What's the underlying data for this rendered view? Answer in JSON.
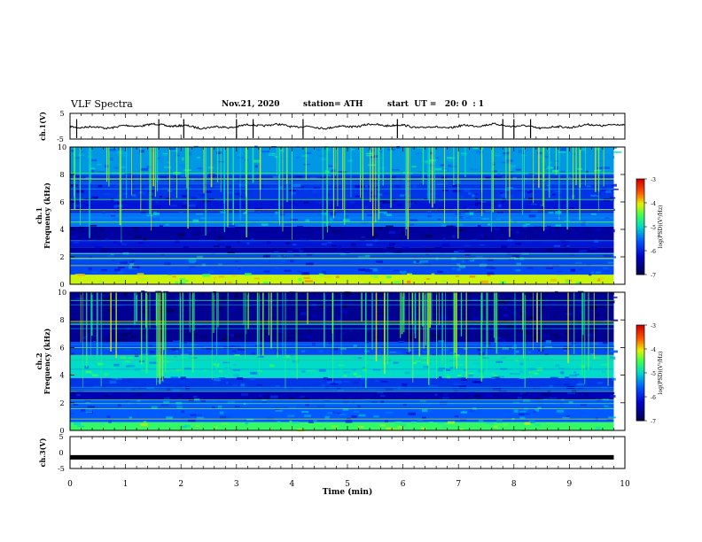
{
  "header": {
    "title": "VLF Spectra",
    "date": "Nov.21, 2020",
    "station": "station= ATH",
    "start": "start  UT =   20: 0  : 1"
  },
  "chart_data": [
    {
      "type": "line",
      "name": "ch1-waveform",
      "ylabel": "ch.1(V)",
      "xlim": [
        0,
        10
      ],
      "ylim": [
        -5,
        5
      ],
      "yticks": [
        "5",
        "-5"
      ],
      "baseline": 0,
      "spikes_time_min": [
        0.12,
        1.6,
        2.05,
        3.0,
        3.3,
        4.2,
        5.9,
        7.8,
        8.0,
        8.3
      ]
    },
    {
      "type": "heatmap",
      "name": "ch1-spectrogram",
      "ylabel": "ch.1 Frequency (kHz)",
      "xlim": [
        0,
        10
      ],
      "ylim": [
        0,
        10
      ],
      "yticks": [
        "0",
        "2",
        "4",
        "6",
        "8",
        "10"
      ],
      "data_end_min": 9.8,
      "colorbar": {
        "label": "log(PSD)(V²/Hz)",
        "ticks": [
          "-3",
          "-4",
          "-5",
          "-6",
          "-7"
        ],
        "range": [
          -7,
          -3
        ]
      },
      "bands": [
        {
          "f": [
            0,
            0.7
          ],
          "level": 0.72
        },
        {
          "f": [
            0.7,
            2.3
          ],
          "level": 0.32
        },
        {
          "f": [
            2.3,
            2.7
          ],
          "level": 0.12
        },
        {
          "f": [
            2.7,
            3.2
          ],
          "level": 0.22
        },
        {
          "f": [
            3.2,
            4.2
          ],
          "level": 0.12
        },
        {
          "f": [
            4.2,
            5.2
          ],
          "level": 0.38
        },
        {
          "f": [
            5.2,
            6.2
          ],
          "level": 0.22
        },
        {
          "f": [
            6.2,
            8.0
          ],
          "level": 0.28
        },
        {
          "f": [
            8.0,
            10.0
          ],
          "level": 0.42
        }
      ]
    },
    {
      "type": "heatmap",
      "name": "ch2-spectrogram",
      "ylabel": "ch.2 Frequency (kHz)",
      "xlim": [
        0,
        10
      ],
      "ylim": [
        0,
        10
      ],
      "yticks": [
        "0",
        "2",
        "4",
        "6",
        "8",
        "10"
      ],
      "data_end_min": 9.8,
      "colorbar": {
        "label": "log(PSD)(V²/Hz)",
        "ticks": [
          "-3",
          "-4",
          "-5",
          "-6",
          "-7"
        ],
        "range": [
          -7,
          -3
        ]
      },
      "bands": [
        {
          "f": [
            0,
            0.6
          ],
          "level": 0.6
        },
        {
          "f": [
            0.6,
            2.2
          ],
          "level": 0.35
        },
        {
          "f": [
            2.2,
            2.8
          ],
          "level": 0.15
        },
        {
          "f": [
            2.8,
            3.8
          ],
          "level": 0.28
        },
        {
          "f": [
            3.8,
            5.4
          ],
          "level": 0.5
        },
        {
          "f": [
            5.4,
            6.4
          ],
          "level": 0.32
        },
        {
          "f": [
            6.4,
            10.0
          ],
          "level": 0.1
        }
      ]
    },
    {
      "type": "line",
      "name": "ch3-waveform",
      "ylabel": "ch.3(V)",
      "xlim": [
        0,
        10
      ],
      "ylim": [
        -5,
        5
      ],
      "yticks": [
        "5",
        "0",
        "-5"
      ],
      "baseline": -1.5,
      "data_end_min": 9.8
    }
  ],
  "xaxis": {
    "label": "Time  (min)",
    "ticks": [
      "0",
      "1",
      "2",
      "3",
      "4",
      "5",
      "6",
      "7",
      "8",
      "9",
      "10"
    ]
  }
}
